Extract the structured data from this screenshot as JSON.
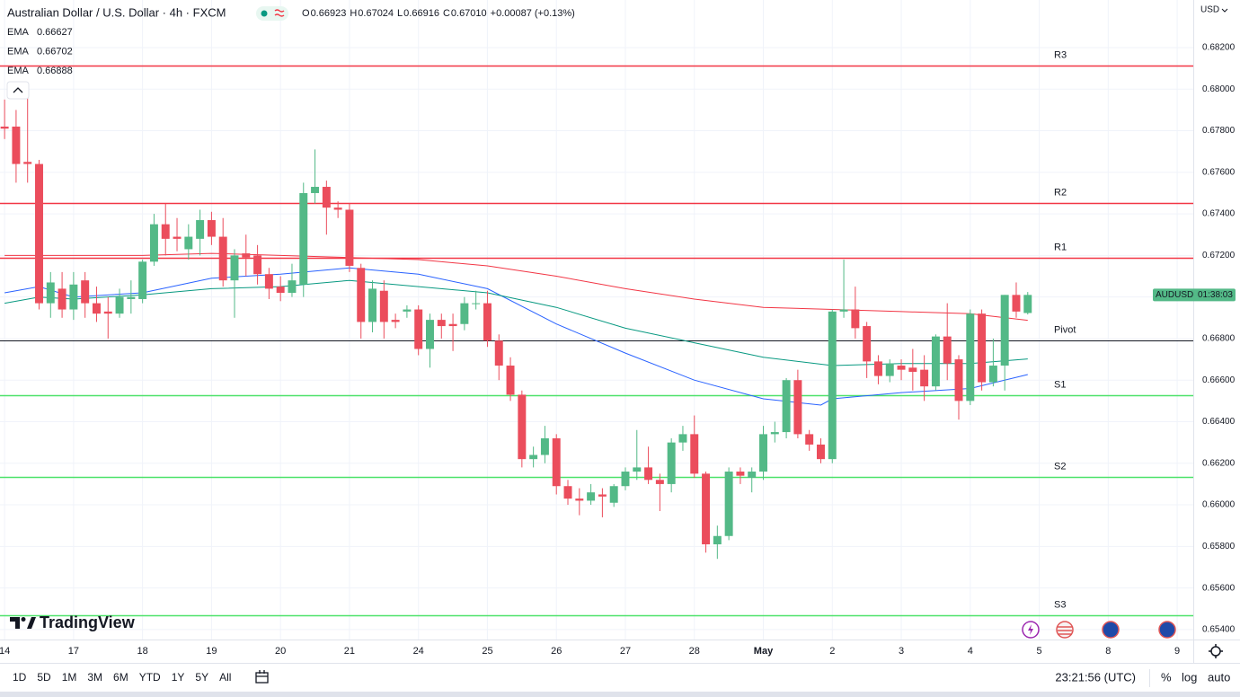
{
  "chart_data": {
    "type": "candlestick",
    "title": "Australian Dollar / U.S. Dollar · 4h · FXCM",
    "ohlc_header": [
      {
        "label": "O",
        "value": "0.66923"
      },
      {
        "label": "H",
        "value": "0.67024"
      },
      {
        "label": "L",
        "value": "0.66916"
      },
      {
        "label": "C",
        "value": "0.67010"
      }
    ],
    "change": "+0.00087 (+0.13%)",
    "currency": "USD",
    "symbol": "AUDUSD",
    "countdown": "01:38:03",
    "up_color": "#53b987",
    "down_color": "#eb4d5c",
    "open": [
      0.6782,
      0.6782,
      0.6765,
      0.6764,
      0.6697,
      0.6704,
      0.6694,
      0.6708,
      0.6697,
      0.6693,
      0.6692,
      0.6699,
      0.6699,
      0.6717,
      0.6735,
      0.6729,
      0.6723,
      0.6728,
      0.6737,
      0.6729,
      0.6708,
      0.6721,
      0.672,
      0.6711,
      0.6705,
      0.6702,
      0.6706,
      0.675,
      0.6753,
      0.6743,
      0.6742,
      0.6714,
      0.6688,
      0.6703,
      0.6689,
      0.6693,
      0.6694,
      0.6675,
      0.6689,
      0.6687,
      0.6687,
      0.6697,
      0.6697,
      0.6679,
      0.6667,
      0.6653,
      0.6622,
      0.6624,
      0.6632,
      0.6609,
      0.6603,
      0.6602,
      0.6605,
      0.6601,
      0.6609,
      0.6616,
      0.6618,
      0.6612,
      0.661,
      0.663,
      0.6634,
      0.6615,
      0.6581,
      0.6585,
      0.6616,
      0.6613,
      0.6616,
      0.6634,
      0.6635,
      0.666,
      0.6634,
      0.6629,
      0.6622,
      0.6693,
      0.6694,
      0.6686,
      0.6669,
      0.6662,
      0.6667,
      0.6666,
      0.6665,
      0.6657,
      0.6681,
      0.667,
      0.665,
      0.6692,
      0.6659,
      0.6667,
      0.6701,
      0.66923
    ],
    "high": [
      0.6795,
      0.679,
      0.68,
      0.6766,
      0.6712,
      0.6712,
      0.6712,
      0.6712,
      0.6705,
      0.67,
      0.6704,
      0.6708,
      0.6718,
      0.674,
      0.6745,
      0.6738,
      0.6735,
      0.6742,
      0.6741,
      0.6738,
      0.6723,
      0.673,
      0.6725,
      0.6714,
      0.671,
      0.6716,
      0.6755,
      0.6771,
      0.6756,
      0.6746,
      0.6745,
      0.6716,
      0.6708,
      0.6708,
      0.6692,
      0.6696,
      0.6696,
      0.6692,
      0.6692,
      0.6692,
      0.67,
      0.6703,
      0.6703,
      0.6682,
      0.6671,
      0.6655,
      0.6628,
      0.6638,
      0.6634,
      0.6612,
      0.6608,
      0.661,
      0.6608,
      0.661,
      0.6618,
      0.6636,
      0.6628,
      0.6615,
      0.6632,
      0.6638,
      0.6643,
      0.6616,
      0.659,
      0.6618,
      0.6618,
      0.6618,
      0.6638,
      0.664,
      0.6661,
      0.6665,
      0.6636,
      0.6632,
      0.6694,
      0.6718,
      0.6705,
      0.6688,
      0.6672,
      0.667,
      0.667,
      0.6675,
      0.6672,
      0.6682,
      0.6697,
      0.6672,
      0.6694,
      0.6694,
      0.668,
      0.6701,
      0.6707,
      0.67024
    ],
    "low": [
      0.6776,
      0.6755,
      0.6755,
      0.6694,
      0.669,
      0.669,
      0.6689,
      0.669,
      0.6688,
      0.668,
      0.669,
      0.6692,
      0.6697,
      0.6715,
      0.672,
      0.6722,
      0.6718,
      0.672,
      0.6725,
      0.6705,
      0.669,
      0.671,
      0.6706,
      0.6699,
      0.6698,
      0.67,
      0.67,
      0.6745,
      0.673,
      0.6738,
      0.6712,
      0.668,
      0.6683,
      0.668,
      0.6685,
      0.669,
      0.6672,
      0.6666,
      0.668,
      0.6674,
      0.6684,
      0.6694,
      0.6676,
      0.666,
      0.665,
      0.6618,
      0.6618,
      0.662,
      0.6605,
      0.66,
      0.6595,
      0.66,
      0.6594,
      0.6599,
      0.6607,
      0.6612,
      0.661,
      0.6597,
      0.6606,
      0.6626,
      0.6613,
      0.6577,
      0.6574,
      0.6583,
      0.661,
      0.6606,
      0.6612,
      0.663,
      0.6632,
      0.6632,
      0.6626,
      0.662,
      0.662,
      0.669,
      0.668,
      0.6661,
      0.6658,
      0.6659,
      0.666,
      0.6655,
      0.665,
      0.6655,
      0.666,
      0.6641,
      0.6648,
      0.6655,
      0.6657,
      0.6655,
      0.669,
      0.66916
    ],
    "close": [
      0.6781,
      0.6764,
      0.6764,
      0.6697,
      0.6707,
      0.6694,
      0.6706,
      0.6697,
      0.6692,
      0.6692,
      0.67,
      0.67,
      0.6717,
      0.6735,
      0.6728,
      0.6728,
      0.6729,
      0.6737,
      0.6729,
      0.6708,
      0.672,
      0.6719,
      0.6711,
      0.6704,
      0.6702,
      0.6708,
      0.675,
      0.6753,
      0.6743,
      0.6742,
      0.6715,
      0.6688,
      0.6704,
      0.6688,
      0.6688,
      0.6694,
      0.6675,
      0.6689,
      0.6686,
      0.6686,
      0.6697,
      0.6697,
      0.6679,
      0.6667,
      0.6653,
      0.6622,
      0.6624,
      0.6632,
      0.6609,
      0.6603,
      0.6602,
      0.6606,
      0.6604,
      0.6609,
      0.6616,
      0.6618,
      0.6612,
      0.661,
      0.663,
      0.6634,
      0.6615,
      0.6581,
      0.6585,
      0.6616,
      0.6614,
      0.6616,
      0.6634,
      0.6635,
      0.666,
      0.6634,
      0.6629,
      0.6622,
      0.6693,
      0.6694,
      0.6685,
      0.6669,
      0.6662,
      0.6668,
      0.6665,
      0.6664,
      0.6657,
      0.6681,
      0.6668,
      0.665,
      0.6692,
      0.6659,
      0.6667,
      0.6701,
      0.6693,
      0.6701
    ],
    "series": [
      {
        "name": "EMA",
        "legend_value": "0.66627",
        "color": "#2962ff",
        "x": [
          0,
          3,
          6,
          12,
          18,
          24,
          30,
          36,
          42,
          48,
          54,
          60,
          66,
          71,
          72,
          78,
          84,
          89
        ],
        "values": [
          0.6702,
          0.6705,
          0.67,
          0.6702,
          0.6709,
          0.6711,
          0.6714,
          0.6711,
          0.6704,
          0.6687,
          0.6673,
          0.666,
          0.6651,
          0.6648,
          0.6651,
          0.6654,
          0.6656,
          0.66627
        ]
      },
      {
        "name": "EMA",
        "legend_value": "0.66702",
        "color": "#089981",
        "x": [
          0,
          3,
          6,
          12,
          18,
          24,
          30,
          36,
          42,
          48,
          54,
          60,
          66,
          72,
          78,
          84,
          89
        ],
        "values": [
          0.6697,
          0.67,
          0.6699,
          0.6701,
          0.6704,
          0.6705,
          0.6708,
          0.6705,
          0.6702,
          0.6695,
          0.6685,
          0.6678,
          0.6671,
          0.6667,
          0.6668,
          0.6668,
          0.66702
        ]
      },
      {
        "name": "EMA",
        "legend_value": "0.66888",
        "color": "#f23645",
        "x": [
          0,
          6,
          12,
          18,
          24,
          30,
          36,
          42,
          48,
          54,
          60,
          66,
          72,
          78,
          84,
          89
        ],
        "values": [
          0.672,
          0.672,
          0.672,
          0.6721,
          0.672,
          0.6719,
          0.6718,
          0.6715,
          0.671,
          0.6704,
          0.6699,
          0.6695,
          0.6694,
          0.6693,
          0.6692,
          0.66888
        ]
      }
    ],
    "levels": [
      {
        "name": "R3",
        "value": 0.68114,
        "color": "#f23645"
      },
      {
        "name": "R2",
        "value": 0.67453,
        "color": "#f23645"
      },
      {
        "name": "R1",
        "value": 0.67189,
        "color": "#f23645"
      },
      {
        "name": "Pivot",
        "value": 0.66792,
        "color": "#131722"
      },
      {
        "name": "S1",
        "value": 0.66528,
        "color": "#4ee26a"
      },
      {
        "name": "S2",
        "value": 0.66135,
        "color": "#4ee26a"
      },
      {
        "name": "S3",
        "value": 0.6547,
        "color": "#4ee26a"
      }
    ],
    "ylim": [
      0.65352,
      0.68429
    ],
    "yticks": [
      {
        "value": 0.654,
        "label": "0.65400"
      },
      {
        "value": 0.656,
        "label": "0.65600"
      },
      {
        "value": 0.658,
        "label": "0.65800"
      },
      {
        "value": 0.66,
        "label": "0.66000"
      },
      {
        "value": 0.662,
        "label": "0.66200"
      },
      {
        "value": 0.664,
        "label": "0.66400"
      },
      {
        "value": 0.666,
        "label": "0.66600"
      },
      {
        "value": 0.668,
        "label": "0.66800"
      },
      {
        "value": 0.67,
        "label": "0.67000"
      },
      {
        "value": 0.672,
        "label": "0.67200"
      },
      {
        "value": 0.674,
        "label": "0.67400"
      },
      {
        "value": 0.676,
        "label": "0.67600"
      },
      {
        "value": 0.678,
        "label": "0.67800"
      },
      {
        "value": 0.68,
        "label": "0.68000"
      },
      {
        "value": 0.682,
        "label": "0.68200"
      }
    ],
    "xlim": [
      -0.4,
      103.4
    ],
    "xticks": [
      {
        "value": 0,
        "label": "14"
      },
      {
        "value": 6,
        "label": "17"
      },
      {
        "value": 12,
        "label": "18"
      },
      {
        "value": 18,
        "label": "19"
      },
      {
        "value": 24,
        "label": "20"
      },
      {
        "value": 30,
        "label": "21"
      },
      {
        "value": 36,
        "label": "24"
      },
      {
        "value": 42,
        "label": "25"
      },
      {
        "value": 48,
        "label": "26"
      },
      {
        "value": 54,
        "label": "27"
      },
      {
        "value": 60,
        "label": "28"
      },
      {
        "value": 66,
        "label": "May"
      },
      {
        "value": 72,
        "label": "2"
      },
      {
        "value": 78,
        "label": "3"
      },
      {
        "value": 84,
        "label": "4"
      },
      {
        "value": 90,
        "label": "5"
      },
      {
        "value": 96,
        "label": "8"
      },
      {
        "value": 102,
        "label": "9"
      }
    ],
    "grid": true,
    "brand": "TradingView",
    "ranges": [
      "1D",
      "5D",
      "1M",
      "3M",
      "6M",
      "YTD",
      "1Y",
      "5Y",
      "All"
    ],
    "clock": "23:21:56 (UTC)",
    "scale_options": [
      "%",
      "log",
      "auto"
    ]
  }
}
